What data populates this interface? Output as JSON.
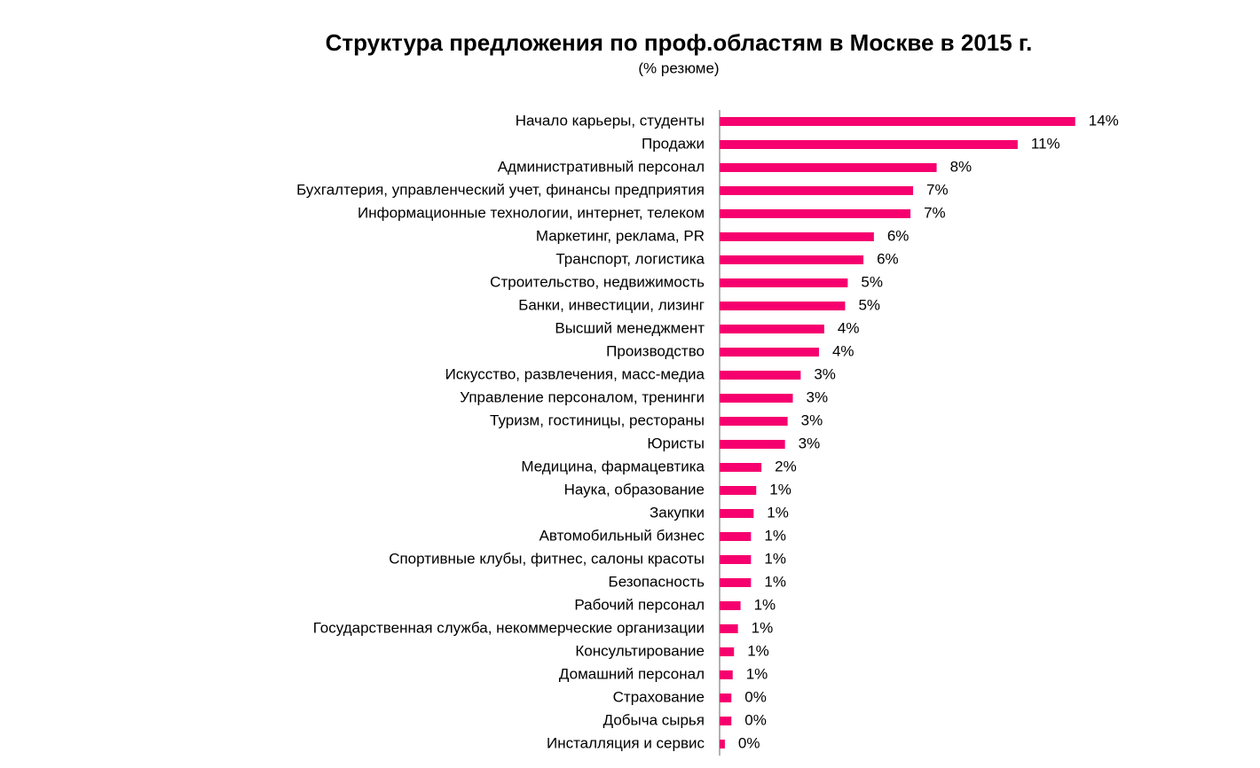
{
  "chart_data": {
    "type": "hbar",
    "title": "Структура предложения по проф.областям в Москве в 2015 г.",
    "subtitle": "(% резюме)",
    "color": "#f5006e",
    "xlim": [
      0,
      15
    ],
    "categories": [
      "Начало карьеры, студенты",
      "Продажи",
      "Административный персонал",
      "Бухгалтерия, управленческий учет, финансы предприятия",
      "Информационные технологии, интернет, телеком",
      "Маркетинг, реклама, PR",
      "Транспорт, логистика",
      "Строительство, недвижимость",
      "Банки, инвестиции, лизинг",
      "Высший менеджмент",
      "Производство",
      "Искусство, развлечения, масс-медиа",
      "Управление персоналом, тренинги",
      "Туризм, гостиницы, рестораны",
      "Юристы",
      "Медицина, фармацевтика",
      "Наука, образование",
      "Закупки",
      "Автомобильный бизнес",
      "Спортивные клубы, фитнес, салоны красоты",
      "Безопасность",
      "Рабочий персонал",
      "Государственная служба, некоммерческие организации",
      "Консультирование",
      "Домашний персонал",
      "Страхование",
      "Добыча сырья",
      "Инсталляция и сервис"
    ],
    "values": [
      13.6,
      11.4,
      8.3,
      7.4,
      7.3,
      5.9,
      5.5,
      4.9,
      4.8,
      4.0,
      3.8,
      3.1,
      2.8,
      2.6,
      2.5,
      1.6,
      1.4,
      1.3,
      1.2,
      1.2,
      1.2,
      0.8,
      0.7,
      0.55,
      0.5,
      0.45,
      0.45,
      0.2
    ],
    "value_labels": [
      "14%",
      "11%",
      "8%",
      "7%",
      "7%",
      "6%",
      "6%",
      "5%",
      "5%",
      "4%",
      "4%",
      "3%",
      "3%",
      "3%",
      "3%",
      "2%",
      "1%",
      "1%",
      "1%",
      "1%",
      "1%",
      "1%",
      "1%",
      "1%",
      "1%",
      "0%",
      "0%",
      "0%"
    ]
  }
}
